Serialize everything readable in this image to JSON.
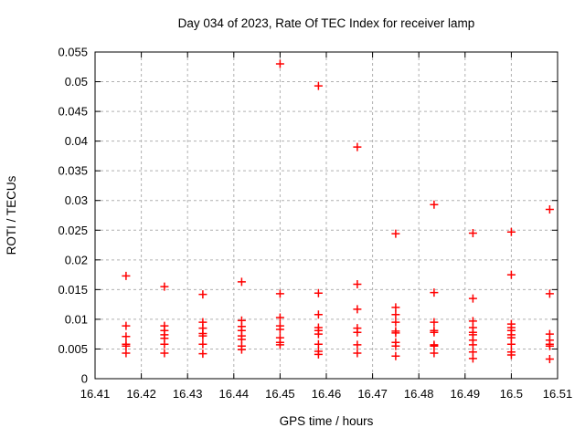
{
  "window": {
    "background": "#ffffff"
  },
  "chart_data": {
    "type": "scatter",
    "title": "Day 034 of 2023, Rate Of TEC Index for receiver lamp",
    "xlabel": "GPS time / hours",
    "ylabel": "ROTI / TECUs",
    "xlim": [
      16.41,
      16.51
    ],
    "ylim": [
      0,
      0.055
    ],
    "xticks": [
      16.41,
      16.42,
      16.43,
      16.44,
      16.45,
      16.46,
      16.47,
      16.48,
      16.49,
      16.5,
      16.51
    ],
    "xtick_labels": [
      "16.41",
      "16.42",
      "16.43",
      "16.44",
      "16.45",
      "16.46",
      "16.47",
      "16.48",
      "16.49",
      "16.5",
      "16.51"
    ],
    "yticks": [
      0,
      0.005,
      0.01,
      0.015,
      0.02,
      0.025,
      0.03,
      0.035,
      0.04,
      0.045,
      0.05,
      0.055
    ],
    "ytick_labels": [
      "0",
      "0.005",
      "0.01",
      "0.015",
      "0.02",
      "0.025",
      "0.03",
      "0.035",
      "0.04",
      "0.045",
      "0.05",
      "0.055"
    ],
    "grid": true,
    "grid_color": "#b0b0b0",
    "border_color": "#000000",
    "legend": false,
    "marker": "plus",
    "marker_size": 4.5,
    "series": [
      {
        "name": "ROTI",
        "color": "#ff0000",
        "points": [
          [
            16.4167,
            0.0173
          ],
          [
            16.4167,
            0.0089
          ],
          [
            16.4167,
            0.0071
          ],
          [
            16.4167,
            0.0058
          ],
          [
            16.4167,
            0.0055
          ],
          [
            16.4167,
            0.0043
          ],
          [
            16.425,
            0.0155
          ],
          [
            16.425,
            0.0089
          ],
          [
            16.425,
            0.0081
          ],
          [
            16.425,
            0.0074
          ],
          [
            16.425,
            0.0068
          ],
          [
            16.425,
            0.0058
          ],
          [
            16.425,
            0.0043
          ],
          [
            16.4333,
            0.0142
          ],
          [
            16.4333,
            0.0095
          ],
          [
            16.4333,
            0.0085
          ],
          [
            16.4333,
            0.0076
          ],
          [
            16.4333,
            0.0072
          ],
          [
            16.4333,
            0.0058
          ],
          [
            16.4333,
            0.0042
          ],
          [
            16.4417,
            0.0163
          ],
          [
            16.4417,
            0.0098
          ],
          [
            16.4417,
            0.0088
          ],
          [
            16.4417,
            0.0081
          ],
          [
            16.4417,
            0.0072
          ],
          [
            16.4417,
            0.0066
          ],
          [
            16.4417,
            0.0055
          ],
          [
            16.4417,
            0.0049
          ],
          [
            16.45,
            0.053
          ],
          [
            16.45,
            0.0143
          ],
          [
            16.45,
            0.0103
          ],
          [
            16.45,
            0.0089
          ],
          [
            16.45,
            0.0083
          ],
          [
            16.45,
            0.0069
          ],
          [
            16.45,
            0.0061
          ],
          [
            16.45,
            0.0057
          ],
          [
            16.4583,
            0.0493
          ],
          [
            16.4583,
            0.0144
          ],
          [
            16.4583,
            0.0108
          ],
          [
            16.4583,
            0.0086
          ],
          [
            16.4583,
            0.0081
          ],
          [
            16.4583,
            0.0075
          ],
          [
            16.4583,
            0.0058
          ],
          [
            16.4583,
            0.0046
          ],
          [
            16.4583,
            0.0041
          ],
          [
            16.4667,
            0.039
          ],
          [
            16.4667,
            0.0159
          ],
          [
            16.4667,
            0.0117
          ],
          [
            16.4667,
            0.0085
          ],
          [
            16.4667,
            0.0078
          ],
          [
            16.4667,
            0.0057
          ],
          [
            16.4667,
            0.0043
          ],
          [
            16.475,
            0.0244
          ],
          [
            16.475,
            0.012
          ],
          [
            16.475,
            0.0108
          ],
          [
            16.475,
            0.0095
          ],
          [
            16.475,
            0.008
          ],
          [
            16.475,
            0.0077
          ],
          [
            16.475,
            0.0061
          ],
          [
            16.475,
            0.0055
          ],
          [
            16.475,
            0.0038
          ],
          [
            16.4833,
            0.0293
          ],
          [
            16.4833,
            0.0145
          ],
          [
            16.4833,
            0.0095
          ],
          [
            16.4833,
            0.0081
          ],
          [
            16.4833,
            0.0078
          ],
          [
            16.4833,
            0.0057
          ],
          [
            16.4833,
            0.0055
          ],
          [
            16.4833,
            0.0043
          ],
          [
            16.4917,
            0.0245
          ],
          [
            16.4917,
            0.0135
          ],
          [
            16.4917,
            0.0097
          ],
          [
            16.4917,
            0.0086
          ],
          [
            16.4917,
            0.0078
          ],
          [
            16.4917,
            0.0074
          ],
          [
            16.4917,
            0.0065
          ],
          [
            16.4917,
            0.0057
          ],
          [
            16.4917,
            0.0045
          ],
          [
            16.4917,
            0.0034
          ],
          [
            16.5,
            0.0247
          ],
          [
            16.5,
            0.0175
          ],
          [
            16.5,
            0.0092
          ],
          [
            16.5,
            0.0086
          ],
          [
            16.5,
            0.0081
          ],
          [
            16.5,
            0.0074
          ],
          [
            16.5,
            0.0069
          ],
          [
            16.5,
            0.0058
          ],
          [
            16.5,
            0.0045
          ],
          [
            16.5,
            0.004
          ],
          [
            16.5083,
            0.0285
          ],
          [
            16.5083,
            0.0143
          ],
          [
            16.5083,
            0.0075
          ],
          [
            16.5083,
            0.0065
          ],
          [
            16.5083,
            0.0058
          ],
          [
            16.5083,
            0.0055
          ],
          [
            16.5083,
            0.0033
          ]
        ]
      }
    ]
  }
}
